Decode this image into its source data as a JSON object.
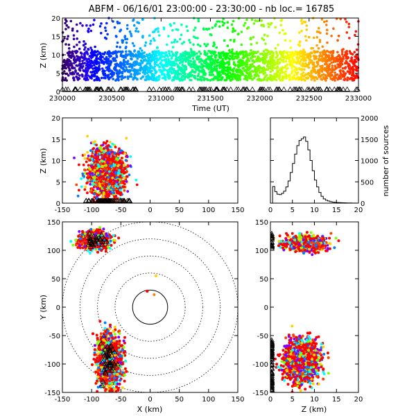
{
  "title": "ABFM - 06/16/01 23:00:00 - 23:30:00 - nb loc.=  16785",
  "colors": {
    "axis": "#000000",
    "highlight": "#ff0000",
    "background": "#ffffff"
  },
  "chart_data": [
    {
      "id": "time-height",
      "type": "scatter",
      "xlabel": "Time (UT)",
      "ylabel": "Z (km)",
      "xlim": [
        230000,
        233000
      ],
      "ylim": [
        0,
        20
      ],
      "xticks": [
        "230000",
        "230500",
        "231000",
        "231500",
        "232000",
        "232500",
        "233000"
      ],
      "yticks": [
        "0",
        "5",
        "10",
        "15",
        "20"
      ],
      "color_encoding": "rainbow by time (purple to red)",
      "series": [
        {
          "z_core": [
            3,
            11
          ],
          "z_sparse": [
            11,
            20
          ],
          "ground_markers": "triangles at Z=0"
        }
      ]
    },
    {
      "id": "x-height",
      "type": "scatter",
      "xlabel": "",
      "ylabel": "Z (km)",
      "xlim": [
        -150,
        150
      ],
      "ylim": [
        0,
        20
      ],
      "xticks": [
        "-150",
        "-100",
        "-50",
        "0",
        "50",
        "100",
        "150"
      ],
      "yticks": [
        "0",
        "5",
        "10",
        "15",
        "20"
      ],
      "clusters": [
        {
          "x_center": -75,
          "x_spread": 28,
          "z_center": 7,
          "z_spread": 4
        }
      ]
    },
    {
      "id": "height-histogram",
      "type": "line",
      "ylabel": "number of sources",
      "xlim": [
        0,
        20
      ],
      "ylim": [
        0,
        2000
      ],
      "xticks": [
        "0",
        "5",
        "10",
        "15",
        "20"
      ],
      "yticks": [
        "0",
        "500",
        "1000",
        "1500",
        "2000"
      ],
      "x": [
        0,
        0.5,
        1,
        1.5,
        2,
        2.5,
        3,
        3.5,
        4,
        4.5,
        5,
        5.5,
        6,
        6.5,
        7,
        7.5,
        8,
        8.5,
        9,
        9.5,
        10,
        10.5,
        11,
        11.5,
        12,
        12.5,
        13,
        13.5,
        14,
        14.5,
        15,
        15.5,
        16,
        16.5,
        17,
        17.5,
        18,
        18.5,
        19,
        19.5
      ],
      "values": [
        0,
        390,
        270,
        210,
        200,
        230,
        280,
        380,
        520,
        720,
        930,
        1150,
        1350,
        1470,
        1510,
        1550,
        1450,
        1250,
        1000,
        760,
        540,
        380,
        250,
        160,
        100,
        70,
        50,
        35,
        25,
        20,
        15,
        12,
        10,
        8,
        6,
        5,
        4,
        3,
        2,
        1
      ]
    },
    {
      "id": "plan-view",
      "type": "scatter",
      "xlabel": "X (km)",
      "ylabel": "Y (km)",
      "xlim": [
        -150,
        150
      ],
      "ylim": [
        -150,
        150
      ],
      "xticks": [
        "-150",
        "-100",
        "-50",
        "0",
        "50",
        "100",
        "150"
      ],
      "yticks": [
        "-150",
        "-100",
        "-50",
        "0",
        "50",
        "100",
        "150"
      ],
      "range_rings_km": [
        30,
        60,
        90,
        120,
        150
      ],
      "clusters": [
        {
          "x_center": -95,
          "x_spread": 28,
          "y_center": 118,
          "y_spread": 14
        },
        {
          "x_center": -70,
          "x_spread": 22,
          "y_center": -95,
          "y_spread": 40
        }
      ]
    },
    {
      "id": "height-y",
      "type": "scatter",
      "xlabel": "Z (km)",
      "ylabel": "",
      "xlim": [
        0,
        20
      ],
      "ylim": [
        -150,
        150
      ],
      "xticks": [
        "0",
        "5",
        "10",
        "15",
        "20"
      ],
      "yticks": [
        "-150",
        "-100",
        "-50",
        "0",
        "50",
        "100",
        "150"
      ],
      "clusters": [
        {
          "z_center": 8,
          "z_spread": 4,
          "y_center": 112,
          "y_spread": 14
        },
        {
          "z_center": 7,
          "z_spread": 3.5,
          "y_center": -95,
          "y_spread": 40
        }
      ]
    }
  ]
}
